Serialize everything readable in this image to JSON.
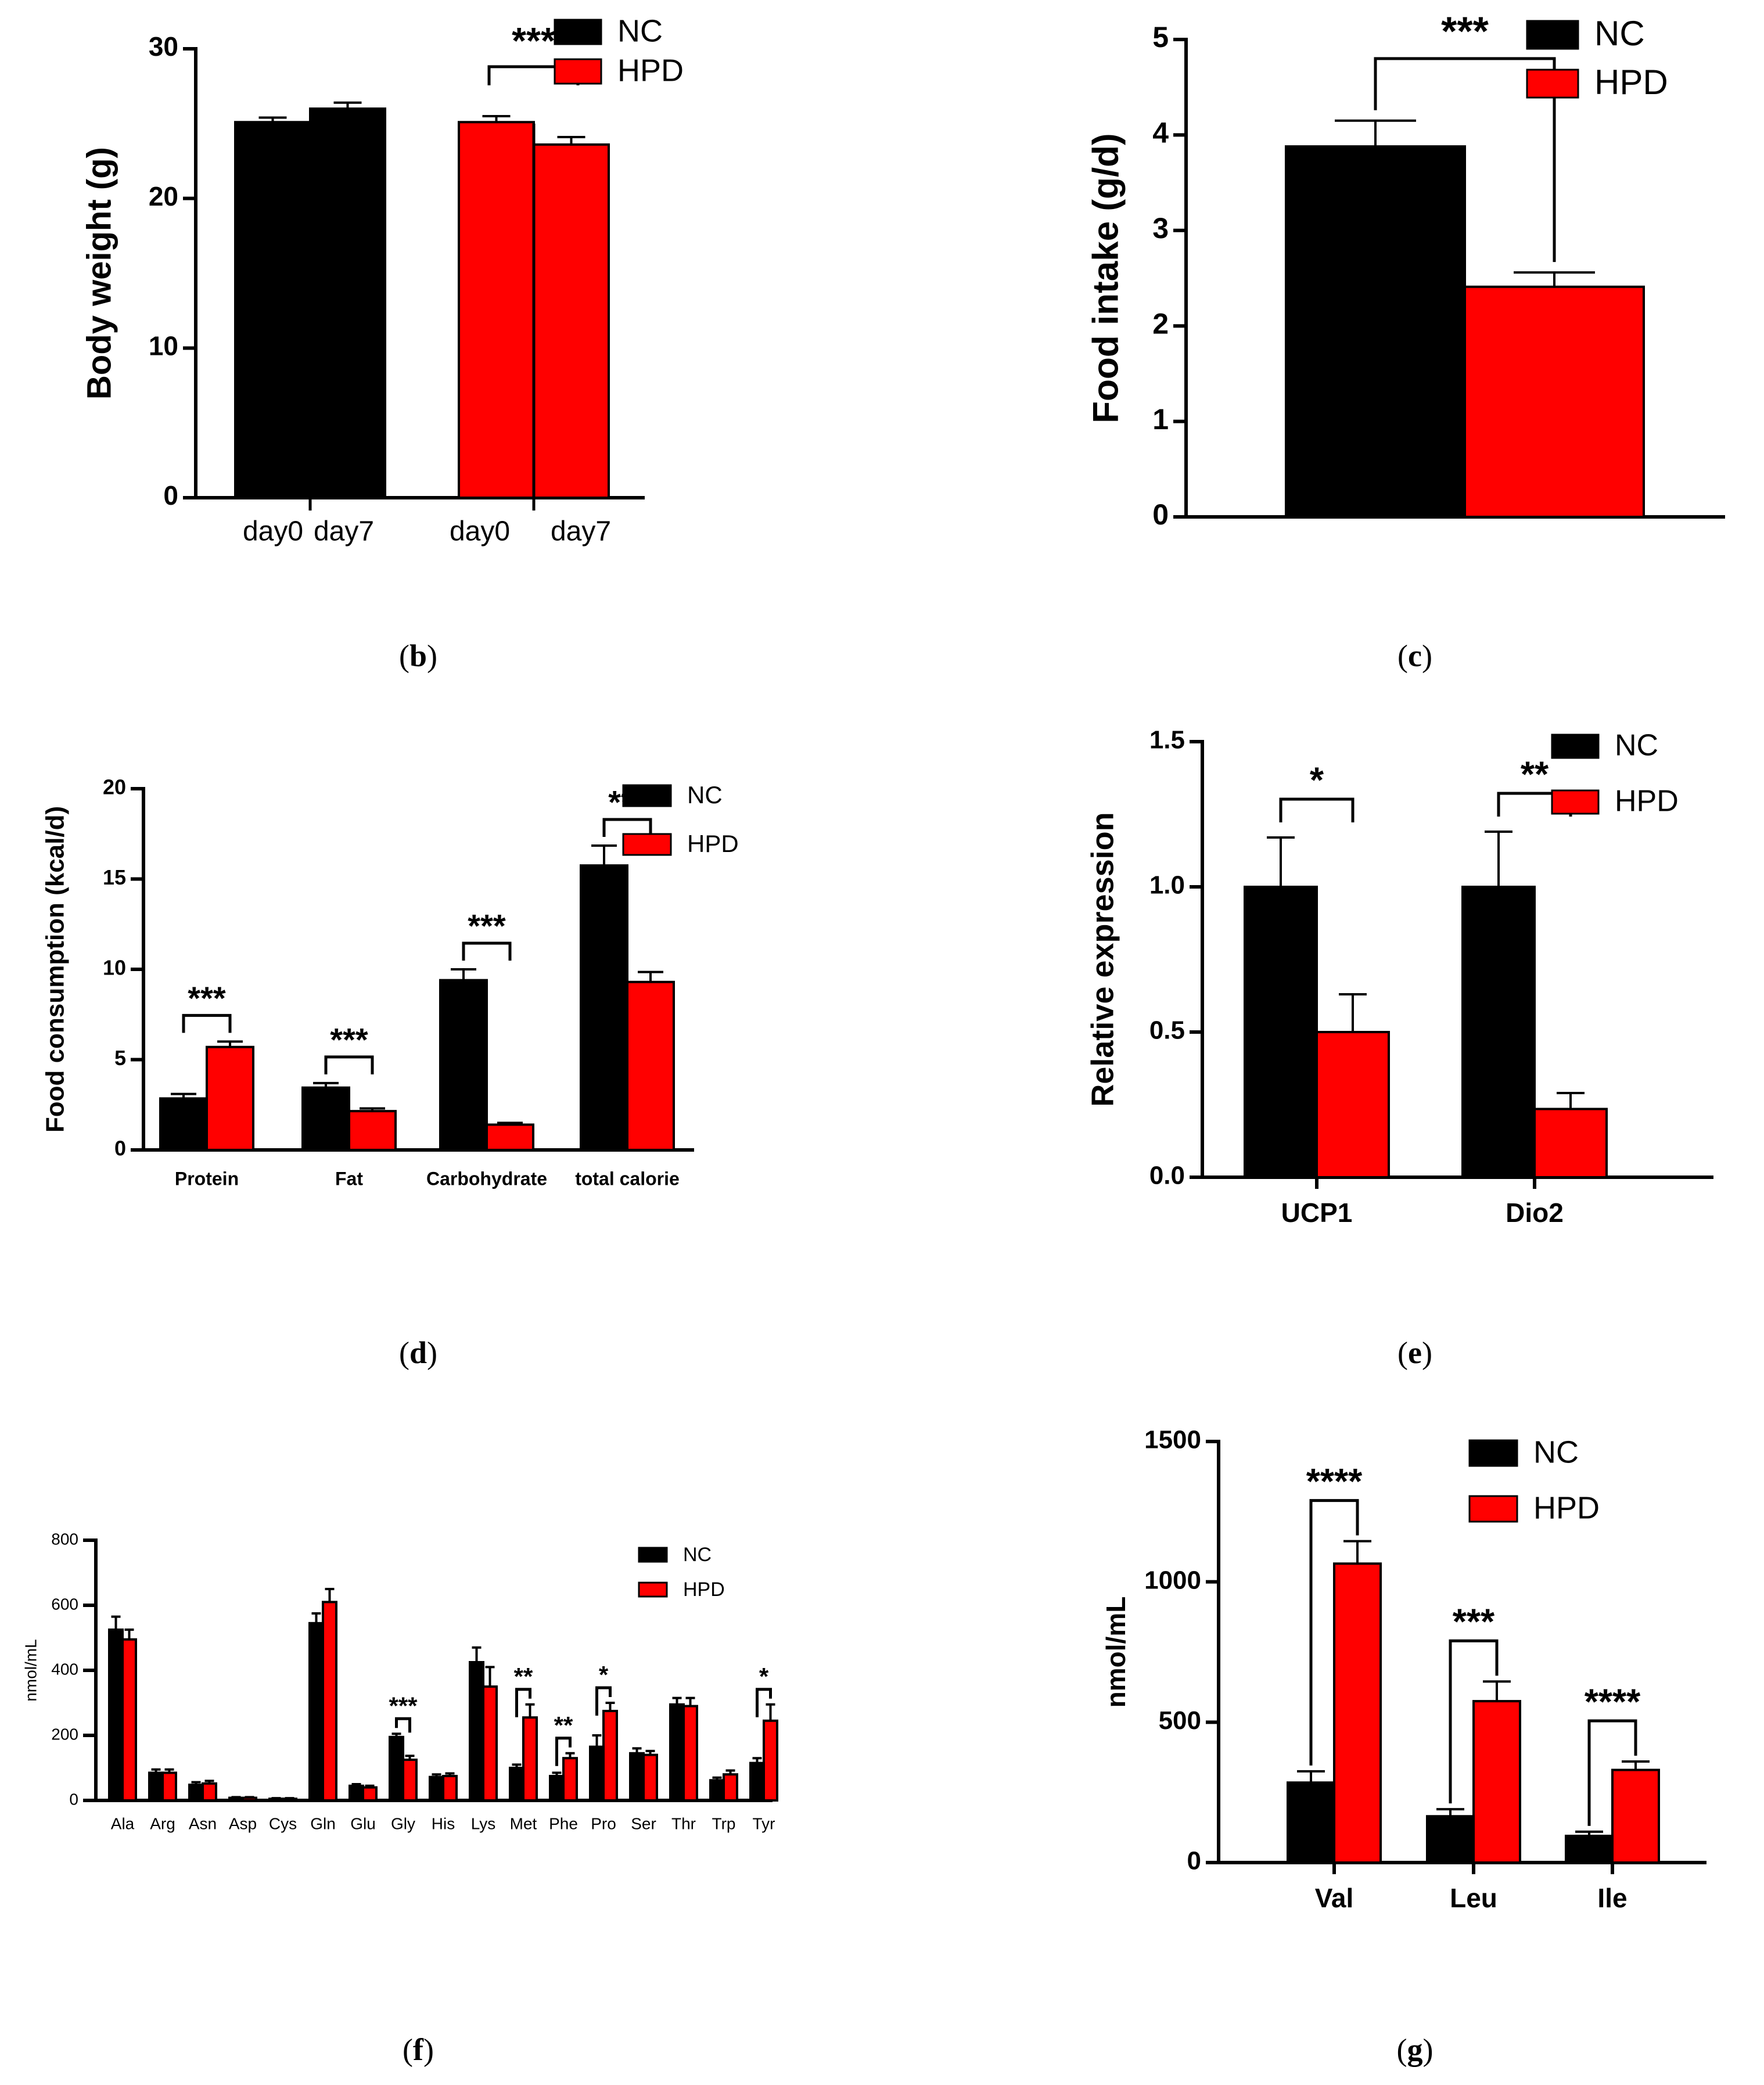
{
  "figure": {
    "colors": {
      "NC": "#000000",
      "HPD": "#ff0000"
    },
    "panel_labels": [
      "(b)",
      "(c)",
      "(d)",
      "(e)",
      "(f)",
      "(g)"
    ]
  },
  "chart_data": [
    {
      "id": "b",
      "type": "bar",
      "title": "",
      "xlabel": "",
      "ylabel": "Body weight (g)",
      "ylim": [
        0,
        30
      ],
      "yticks": [
        0,
        10,
        20,
        30
      ],
      "categories": [
        "day0",
        "day7",
        "day0",
        "day7"
      ],
      "series": [
        {
          "name": "NC",
          "values": [
            25.1,
            26.0,
            null,
            null
          ],
          "errors": [
            0.3,
            0.4,
            null,
            null
          ]
        },
        {
          "name": "HPD",
          "values": [
            null,
            null,
            25.1,
            23.6
          ],
          "errors": [
            null,
            null,
            0.4,
            0.5
          ]
        }
      ],
      "significance": [
        {
          "from": 2,
          "to": 3,
          "label": "***"
        }
      ],
      "legend": [
        "NC",
        "HPD"
      ],
      "legend_position": "top-right"
    },
    {
      "id": "c",
      "type": "bar",
      "title": "",
      "xlabel": "",
      "ylabel": "Food intake (g/d)",
      "ylim": [
        0,
        5
      ],
      "yticks": [
        0,
        1,
        2,
        3,
        4,
        5
      ],
      "categories": [
        ""
      ],
      "series": [
        {
          "name": "NC",
          "values": [
            3.88
          ],
          "errors": [
            0.27
          ]
        },
        {
          "name": "HPD",
          "values": [
            2.41
          ],
          "errors": [
            0.15
          ]
        }
      ],
      "significance": [
        {
          "from": 0,
          "to": 1,
          "label": "***"
        }
      ],
      "legend": [
        "NC",
        "HPD"
      ],
      "legend_position": "top-right"
    },
    {
      "id": "d",
      "type": "bar",
      "title": "",
      "xlabel": "",
      "ylabel": "Food consumption (kcal/d)",
      "ylim": [
        0,
        20
      ],
      "yticks": [
        0,
        5,
        10,
        15,
        20
      ],
      "categories": [
        "Protein",
        "Fat",
        "Carbohydrate",
        "total calorie"
      ],
      "series": [
        {
          "name": "NC",
          "values": [
            2.85,
            3.45,
            9.4,
            15.75
          ],
          "errors": [
            0.25,
            0.25,
            0.6,
            1.1
          ]
        },
        {
          "name": "HPD",
          "values": [
            5.7,
            2.15,
            1.4,
            9.3
          ],
          "errors": [
            0.3,
            0.15,
            0.1,
            0.55
          ]
        }
      ],
      "significance": [
        {
          "category": 0,
          "label": "***"
        },
        {
          "category": 1,
          "label": "***"
        },
        {
          "category": 2,
          "label": "***"
        },
        {
          "category": 3,
          "label": "***"
        }
      ],
      "legend": [
        "NC",
        "HPD"
      ],
      "legend_position": "top-right"
    },
    {
      "id": "e",
      "type": "bar",
      "title": "",
      "xlabel": "",
      "ylabel": "Relative expression",
      "ylim": [
        0,
        1.5
      ],
      "yticks": [
        "0.0",
        "0.5",
        "1.0",
        "1.5"
      ],
      "categories": [
        "UCP1",
        "Dio2"
      ],
      "series": [
        {
          "name": "NC",
          "values": [
            1.0,
            1.0
          ],
          "errors": [
            0.17,
            0.19
          ]
        },
        {
          "name": "HPD",
          "values": [
            0.5,
            0.235
          ],
          "errors": [
            0.13,
            0.055
          ]
        }
      ],
      "significance": [
        {
          "category": 0,
          "label": "*"
        },
        {
          "category": 1,
          "label": "**"
        }
      ],
      "legend": [
        "NC",
        "HPD"
      ],
      "legend_position": "top-right"
    },
    {
      "id": "f",
      "type": "bar",
      "title": "",
      "xlabel": "",
      "ylabel": "nmol/mL",
      "ylim": [
        0,
        800
      ],
      "yticks": [
        0,
        200,
        400,
        600,
        800
      ],
      "categories": [
        "Ala",
        "Arg",
        "Asn",
        "Asp",
        "Cys",
        "Gln",
        "Glu",
        "Gly",
        "His",
        "Lys",
        "Met",
        "Phe",
        "Pro",
        "Ser",
        "Thr",
        "Trp",
        "Tyr"
      ],
      "series": [
        {
          "name": "NC",
          "values": [
            525,
            85,
            48,
            8,
            5,
            545,
            45,
            195,
            72,
            425,
            100,
            75,
            165,
            145,
            295,
            62,
            115
          ],
          "errors": [
            40,
            10,
            8,
            2,
            2,
            30,
            5,
            10,
            8,
            45,
            10,
            10,
            35,
            15,
            20,
            8,
            15
          ]
        },
        {
          "name": "HPD",
          "values": [
            495,
            85,
            52,
            8,
            5,
            610,
            40,
            125,
            75,
            350,
            255,
            130,
            275,
            140,
            290,
            80,
            245
          ],
          "errors": [
            30,
            10,
            8,
            2,
            2,
            40,
            5,
            12,
            8,
            60,
            40,
            15,
            25,
            12,
            25,
            12,
            50
          ]
        }
      ],
      "significance": [
        {
          "category": 7,
          "label": "***"
        },
        {
          "category": 10,
          "label": "**"
        },
        {
          "category": 11,
          "label": "**"
        },
        {
          "category": 12,
          "label": "*"
        },
        {
          "category": 16,
          "label": "*"
        }
      ],
      "legend": [
        "NC",
        "HPD"
      ],
      "legend_position": "top-right"
    },
    {
      "id": "g",
      "type": "bar",
      "title": "",
      "xlabel": "",
      "ylabel": "nmol/mL",
      "ylim": [
        0,
        1500
      ],
      "yticks": [
        0,
        500,
        1000,
        1500
      ],
      "categories": [
        "Val",
        "Leu",
        "Ile"
      ],
      "series": [
        {
          "name": "NC",
          "values": [
            285,
            165,
            95
          ],
          "errors": [
            40,
            25,
            15
          ]
        },
        {
          "name": "HPD",
          "values": [
            1065,
            575,
            330
          ],
          "errors": [
            80,
            70,
            30
          ]
        }
      ],
      "significance": [
        {
          "category": 0,
          "label": "****"
        },
        {
          "category": 1,
          "label": "***"
        },
        {
          "category": 2,
          "label": "****"
        }
      ],
      "legend": [
        "NC",
        "HPD"
      ],
      "legend_position": "top-right"
    }
  ]
}
